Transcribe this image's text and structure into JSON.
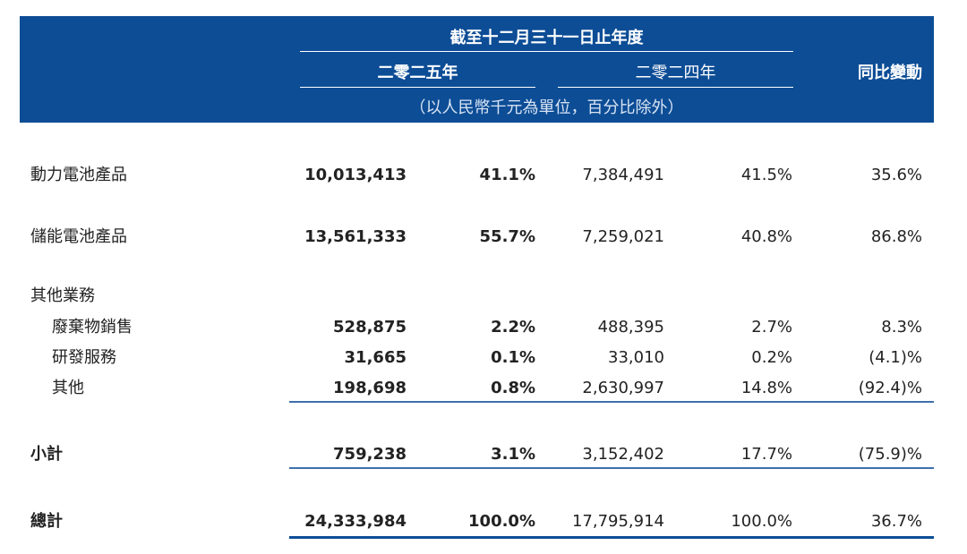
{
  "header": {
    "period": "截至十二月三十一日止年度",
    "year_2025": "二零二五年",
    "year_2024": "二零二四年",
    "change": "同比變動",
    "unit": "（以人民幣千元為單位，百分比除外）"
  },
  "table": {
    "rows": [
      [
        "動力電池產品",
        "10,013,413",
        "41.1%",
        "7,384,491",
        "41.5%",
        "35.6%"
      ],
      [
        "儲能電池產品",
        "13,561,333",
        "55.7%",
        "7,259,021",
        "40.8%",
        "86.8%"
      ],
      [
        "其他業務"
      ],
      [
        "廢棄物銷售",
        "528,875",
        "2.2%",
        "488,395",
        "2.7%",
        "8.3%"
      ],
      [
        "研發服務",
        "31,665",
        "0.1%",
        "33,010",
        "0.2%",
        "(4.1)%"
      ],
      [
        "其他",
        "198,698",
        "0.8%",
        "2,630,997",
        "14.8%",
        "(92.4)%"
      ],
      [
        "小計",
        "759,238",
        "3.1%",
        "3,152,402",
        "17.7%",
        "(75.9)%"
      ],
      [
        "總計",
        "24,333,984",
        "100.0%",
        "17,795,914",
        "100.0%",
        "36.7%"
      ]
    ]
  }
}
